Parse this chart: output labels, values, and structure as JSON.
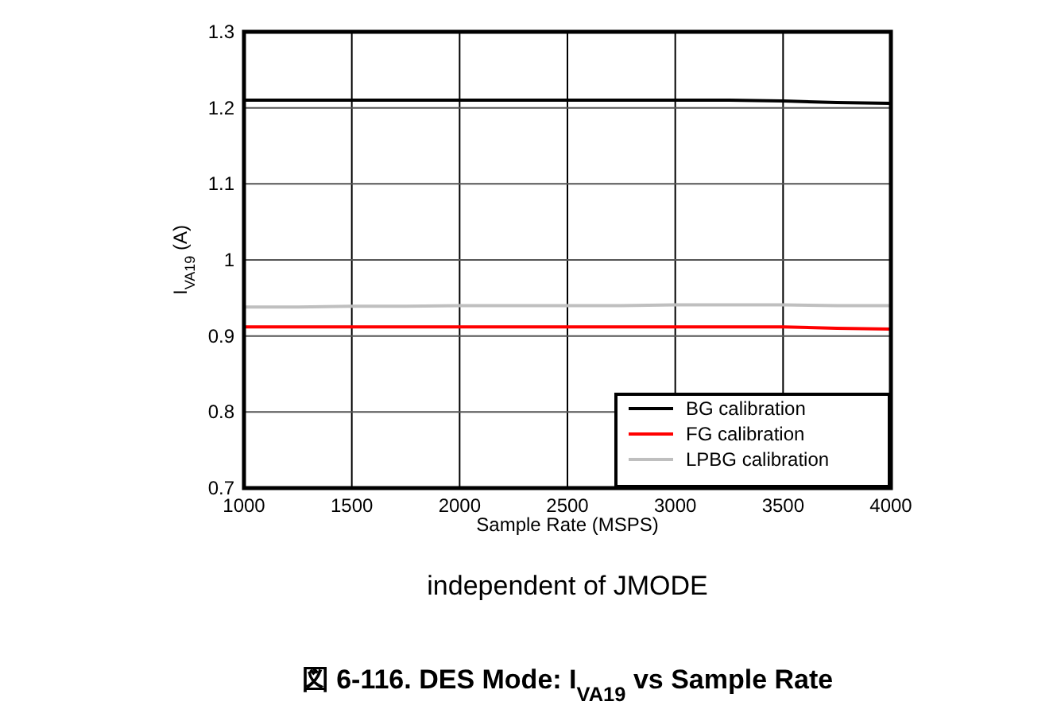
{
  "chart_data": {
    "type": "line",
    "title": "図 6-116. DES Mode: I$_{VA19}$ vs Sample Rate",
    "xlabel": "Sample Rate (MSPS)",
    "ylabel": "I$_{VA19}$ (A)",
    "annotations": [
      "independent of JMODE"
    ],
    "x": [
      1000,
      1250,
      1500,
      1750,
      2000,
      2250,
      2500,
      2750,
      3000,
      3250,
      3500,
      3750,
      4000
    ],
    "series": [
      {
        "name": "BG calibration",
        "color": "#000000",
        "values": [
          1.21,
          1.21,
          1.21,
          1.21,
          1.21,
          1.21,
          1.21,
          1.21,
          1.21,
          1.21,
          1.209,
          1.207,
          1.206
        ]
      },
      {
        "name": "FG calibration",
        "color": "#ff0000",
        "values": [
          0.912,
          0.912,
          0.912,
          0.912,
          0.912,
          0.912,
          0.912,
          0.912,
          0.912,
          0.912,
          0.912,
          0.91,
          0.909
        ]
      },
      {
        "name": "LPBG calibration",
        "color": "#bfbfbf",
        "values": [
          0.938,
          0.938,
          0.939,
          0.939,
          0.94,
          0.94,
          0.94,
          0.94,
          0.941,
          0.941,
          0.941,
          0.94,
          0.94
        ]
      }
    ],
    "xlim": [
      1000,
      4000
    ],
    "xticks": [
      1000,
      1500,
      2000,
      2500,
      3000,
      3500,
      4000
    ],
    "ylim": [
      0.7,
      1.3
    ],
    "yticks": [
      0.7,
      0.8,
      0.9,
      1,
      1.1,
      1.2,
      1.3
    ],
    "grid": true,
    "legend": "bottom right",
    "line_style": "solid",
    "marker": "none"
  }
}
